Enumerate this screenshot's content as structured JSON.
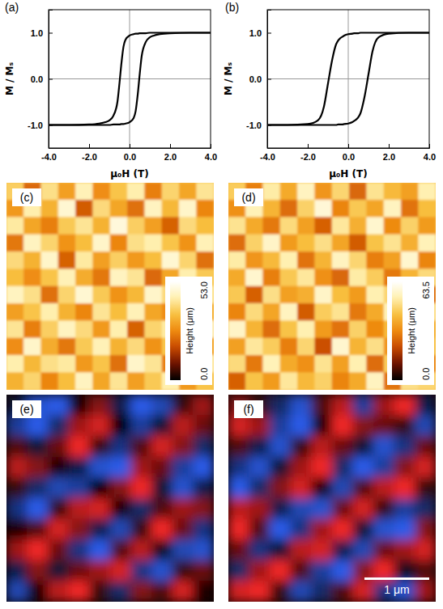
{
  "chart_data": [
    {
      "type": "line",
      "title": "(a)",
      "x_label": "μ₀H (T)",
      "y_label": "M / Mₛ",
      "x": [
        -4,
        -3,
        -2,
        -1.5,
        -1.2,
        -1,
        -0.8,
        -0.6,
        -0.5,
        -0.4,
        -0.3,
        -0.2,
        0,
        0.2,
        0.3,
        0.4,
        0.5,
        0.6,
        0.8,
        1,
        1.2,
        1.5,
        2,
        3,
        4
      ],
      "series": [
        {
          "color": "#000000",
          "values": [
            -1,
            -1,
            -0.99,
            -0.97,
            -0.94,
            -0.9,
            -0.8,
            -0.5,
            -0.1,
            0.35,
            0.7,
            0.85,
            0.94,
            0.97,
            0.98,
            0.98,
            0.99,
            0.99,
            0.99,
            1,
            1,
            1,
            1,
            1,
            1
          ]
        },
        {
          "color": "#000000",
          "values": [
            -1,
            -1,
            -1,
            -1,
            -1,
            -1,
            -0.99,
            -0.99,
            -0.99,
            -0.98,
            -0.98,
            -0.97,
            -0.94,
            -0.85,
            -0.7,
            -0.35,
            0.1,
            0.5,
            0.8,
            0.9,
            0.94,
            0.97,
            0.99,
            1,
            1
          ]
        }
      ],
      "xlim": [
        -4,
        4
      ],
      "xticks": [
        {
          "value": -4,
          "label": "-4.0"
        },
        {
          "value": -2,
          "label": "-2.0"
        },
        {
          "value": 0,
          "label": "0.0"
        },
        {
          "value": 2,
          "label": "2.0"
        },
        {
          "value": 4,
          "label": "4.0"
        }
      ],
      "ylim": [
        -1.5,
        1.5
      ],
      "yticks": [
        {
          "value": -1,
          "label": "-1.0"
        },
        {
          "value": 0,
          "label": "0.0"
        },
        {
          "value": 1,
          "label": "1.0"
        }
      ],
      "grid": false
    },
    {
      "type": "line",
      "title": "(b)",
      "x_label": "μ₀H (T)",
      "y_label": "M / Mₛ",
      "x": [
        -4,
        -3,
        -2,
        -1.5,
        -1.2,
        -1,
        -0.8,
        -0.6,
        -0.5,
        -0.4,
        -0.3,
        -0.2,
        0,
        0.2,
        0.3,
        0.4,
        0.5,
        0.6,
        0.8,
        1,
        1.2,
        1.5,
        2,
        3,
        4
      ],
      "series": [
        {
          "color": "#000000",
          "values": [
            -1,
            -1,
            -0.98,
            -0.9,
            -0.6,
            -0.1,
            0.4,
            0.75,
            0.83,
            0.88,
            0.91,
            0.94,
            0.97,
            0.98,
            0.99,
            0.99,
            0.99,
            1,
            1,
            1,
            1,
            1,
            1,
            1,
            1
          ]
        },
        {
          "color": "#000000",
          "values": [
            -1,
            -1,
            -1,
            -1,
            -1,
            -1,
            -1,
            -1,
            -0.99,
            -0.99,
            -0.99,
            -0.98,
            -0.97,
            -0.94,
            -0.91,
            -0.88,
            -0.83,
            -0.75,
            -0.4,
            0.1,
            0.6,
            0.9,
            0.98,
            1,
            1
          ]
        }
      ],
      "xlim": [
        -4,
        4
      ],
      "xticks": [
        {
          "value": -4,
          "label": "-4.0"
        },
        {
          "value": -2,
          "label": "-2.0"
        },
        {
          "value": 0,
          "label": "0.0"
        },
        {
          "value": 2,
          "label": "2.0"
        },
        {
          "value": 4,
          "label": "4.0"
        }
      ],
      "ylim": [
        -1.5,
        1.5
      ],
      "yticks": [
        {
          "value": -1,
          "label": "-1.0"
        },
        {
          "value": 0,
          "label": "0.0"
        },
        {
          "value": 1,
          "label": "1.0"
        }
      ],
      "grid": false
    },
    {
      "type": "heatmap",
      "title": "(c)",
      "cells": [
        [
          38,
          22,
          41,
          30,
          45,
          27,
          36,
          44,
          25,
          39,
          31,
          42
        ],
        [
          29,
          44,
          33,
          48,
          20,
          40,
          31,
          23,
          46,
          34,
          47,
          26
        ],
        [
          43,
          31,
          25,
          37,
          42,
          33,
          49,
          38,
          30,
          21,
          40,
          35
        ],
        [
          24,
          46,
          39,
          28,
          35,
          47,
          26,
          41,
          44,
          36,
          28,
          45
        ],
        [
          40,
          33,
          47,
          21,
          43,
          30,
          38,
          29,
          35,
          48,
          39,
          23
        ],
        [
          35,
          27,
          36,
          45,
          32,
          24,
          46,
          42,
          22,
          31,
          44,
          37
        ],
        [
          46,
          41,
          23,
          39,
          48,
          37,
          28,
          34,
          47,
          40,
          25,
          43
        ],
        [
          30,
          36,
          44,
          33,
          26,
          42,
          35,
          45,
          31,
          27,
          46,
          32
        ],
        [
          42,
          25,
          38,
          46,
          40,
          29,
          44,
          21,
          39,
          43,
          34,
          48
        ],
        [
          27,
          47,
          32,
          24,
          37,
          45,
          33,
          40,
          28,
          36,
          41,
          30
        ],
        [
          44,
          34,
          41,
          43,
          29,
          36,
          23,
          47,
          42,
          25,
          38,
          45
        ],
        [
          33,
          39,
          26,
          35,
          46,
          31,
          42,
          30,
          37,
          44,
          29,
          36
        ]
      ],
      "colorbar": {
        "label": "Height (μm)",
        "lim": [
          0,
          53
        ],
        "ticks": [
          {
            "value": 0,
            "label": "0.0"
          },
          {
            "value": 53,
            "label": "53.0"
          }
        ]
      }
    },
    {
      "type": "heatmap",
      "title": "(d)",
      "cells": [
        [
          45,
          30,
          52,
          38,
          55,
          34,
          47,
          26,
          50,
          41,
          36,
          53
        ],
        [
          33,
          54,
          40,
          27,
          46,
          58,
          31,
          44,
          37,
          55,
          28,
          42
        ],
        [
          50,
          38,
          29,
          48,
          36,
          25,
          51,
          39,
          57,
          32,
          46,
          35
        ],
        [
          27,
          46,
          56,
          35,
          42,
          49,
          37,
          24,
          43,
          50,
          39,
          54
        ],
        [
          52,
          34,
          41,
          53,
          28,
          40,
          55,
          47,
          30,
          36,
          57,
          31
        ],
        [
          38,
          57,
          30,
          44,
          51,
          33,
          26,
          52,
          45,
          29,
          40,
          48
        ],
        [
          44,
          25,
          49,
          36,
          39,
          56,
          42,
          35,
          53,
          47,
          33,
          26
        ],
        [
          31,
          48,
          37,
          55,
          24,
          45,
          50,
          29,
          38,
          54,
          44,
          51
        ],
        [
          56,
          40,
          27,
          43,
          53,
          35,
          28,
          46,
          32,
          41,
          25,
          39
        ],
        [
          36,
          51,
          45,
          30,
          47,
          22,
          57,
          40,
          49,
          34,
          52,
          43
        ],
        [
          48,
          29,
          54,
          38,
          33,
          50,
          36,
          53,
          27,
          45,
          37,
          30
        ],
        [
          25,
          43,
          35,
          51,
          41,
          46,
          31,
          38,
          55,
          28,
          49,
          47
        ]
      ],
      "colorbar": {
        "label": "Height (μm)",
        "lim": [
          0,
          63.5
        ],
        "ticks": [
          {
            "value": 0,
            "label": "0.0"
          },
          {
            "value": 63.5,
            "label": "63.5"
          }
        ]
      }
    },
    {
      "type": "heatmap",
      "title": "(e)",
      "cells": [
        [
          -0.2,
          -0.8,
          -0.9,
          0.1,
          0.5,
          -0.3,
          -0.9,
          -0.7,
          0.2,
          0.6
        ],
        [
          -0.6,
          -0.9,
          -0.4,
          0.6,
          0.8,
          0.0,
          -0.6,
          -0.2,
          0.7,
          0.4
        ],
        [
          0.3,
          -0.2,
          0.4,
          0.9,
          0.2,
          -0.5,
          0.3,
          0.8,
          0.5,
          -0.4
        ],
        [
          0.7,
          0.5,
          0.1,
          -0.3,
          -0.8,
          -0.9,
          0.6,
          0.4,
          -0.6,
          -0.9
        ],
        [
          0.2,
          -0.4,
          -0.7,
          -0.6,
          0.0,
          0.5,
          0.9,
          -0.2,
          -0.8,
          -0.3
        ],
        [
          -0.5,
          -0.9,
          0.2,
          0.7,
          0.8,
          0.1,
          -0.4,
          0.3,
          0.6,
          0.5
        ],
        [
          0.1,
          0.3,
          0.8,
          0.5,
          -0.3,
          -0.7,
          0.2,
          0.9,
          0.4,
          -0.5
        ],
        [
          0.6,
          0.9,
          0.4,
          -0.5,
          -0.9,
          0.3,
          0.7,
          -0.1,
          -0.7,
          -0.8
        ],
        [
          -0.3,
          0.5,
          -0.2,
          0.4,
          0.6,
          0.8,
          -0.5,
          -0.8,
          0.2,
          0.4
        ],
        [
          -0.7,
          0.1,
          0.7,
          0.9,
          0.2,
          -0.4,
          0.5,
          0.3,
          0.8,
          0.1
        ]
      ]
    },
    {
      "type": "heatmap",
      "title": "(f)",
      "cells": [
        [
          0.5,
          0.2,
          -0.4,
          -0.8,
          0.3,
          0.7,
          -0.6,
          0.6,
          0.9,
          -0.3
        ],
        [
          0.8,
          0.6,
          -0.6,
          -0.9,
          0.1,
          0.9,
          0.5,
          0.4,
          0.2,
          -0.7
        ],
        [
          0.3,
          -0.3,
          -0.8,
          0.2,
          0.7,
          0.4,
          -0.2,
          -0.8,
          -0.5,
          0.4
        ],
        [
          -0.5,
          -0.8,
          -0.2,
          0.6,
          0.9,
          -0.4,
          -0.9,
          -0.6,
          0.5,
          0.8
        ],
        [
          -0.9,
          -0.4,
          0.5,
          0.8,
          0.1,
          -0.7,
          0.3,
          0.7,
          0.9,
          0.2
        ],
        [
          0.7,
          0.6,
          -0.3,
          -0.7,
          -0.8,
          0.4,
          0.8,
          0.2,
          -0.6,
          -0.4
        ],
        [
          0.9,
          0.3,
          -0.9,
          -0.5,
          0.6,
          0.9,
          -0.2,
          -0.8,
          -0.9,
          0.5
        ],
        [
          0.4,
          -0.5,
          -0.2,
          0.7,
          0.8,
          -0.3,
          -0.7,
          0.4,
          0.6,
          0.8
        ],
        [
          -0.4,
          0.6,
          0.9,
          0.3,
          -0.6,
          -0.9,
          0.5,
          0.9,
          -0.1,
          0.3
        ],
        [
          0.8,
          0.9,
          0.2,
          -0.7,
          -0.4,
          0.3,
          0.8,
          -0.5,
          -0.8,
          0.6
        ]
      ],
      "xlim": [
        0,
        3.2
      ],
      "scale_bar": {
        "value": 1,
        "label": "1 μm"
      }
    }
  ]
}
